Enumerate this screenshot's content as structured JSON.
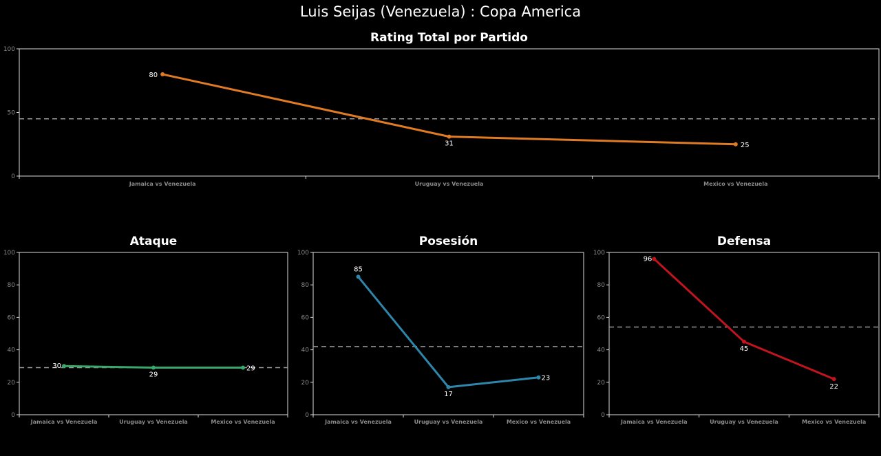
{
  "title": "Luis Seijas (Venezuela) :  Copa  America",
  "colors": {
    "background": "#000000",
    "axis": "#dddddd",
    "tick": "#8a8a8a",
    "average": "#9a9a9a"
  },
  "chart_data": [
    {
      "type": "line",
      "title": "Rating Total por Partido",
      "categories": [
        "Jamaica vs Venezuela",
        "Uruguay vs Venezuela",
        "Mexico vs Venezuela"
      ],
      "values": [
        80,
        31,
        25
      ],
      "average": 45,
      "ylim": [
        0,
        100
      ],
      "yticks": [
        0,
        50,
        100
      ],
      "color": "#e07b24"
    },
    {
      "type": "line",
      "title": "Ataque",
      "categories": [
        "Jamaica vs Venezuela",
        "Uruguay vs Venezuela",
        "Mexico vs Venezuela"
      ],
      "values": [
        30,
        29,
        29
      ],
      "average": 29,
      "ylim": [
        0,
        100
      ],
      "yticks": [
        0,
        20,
        40,
        60,
        80,
        100
      ],
      "color": "#3aa86b"
    },
    {
      "type": "line",
      "title": "Posesión",
      "categories": [
        "Jamaica vs Venezuela",
        "Uruguay vs Venezuela",
        "Mexico vs Venezuela"
      ],
      "values": [
        85,
        17,
        23
      ],
      "average": 42,
      "ylim": [
        0,
        100
      ],
      "yticks": [
        0,
        20,
        40,
        60,
        80,
        100
      ],
      "color": "#2e86ab"
    },
    {
      "type": "line",
      "title": "Defensa",
      "categories": [
        "Jamaica vs Venezuela",
        "Uruguay vs Venezuela",
        "Mexico vs Venezuela"
      ],
      "values": [
        96,
        45,
        22
      ],
      "average": 54,
      "ylim": [
        0,
        100
      ],
      "yticks": [
        0,
        20,
        40,
        60,
        80,
        100
      ],
      "color": "#c0141e"
    }
  ]
}
